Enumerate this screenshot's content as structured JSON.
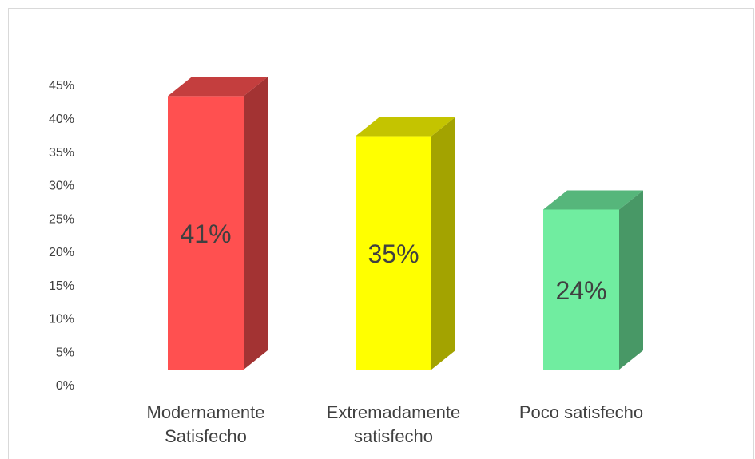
{
  "chart_data": {
    "type": "bar3d",
    "categories": [
      "Modernamente Satisfecho",
      "Extremadamente satisfecho",
      "Poco satisfecho"
    ],
    "values": [
      41,
      35,
      24
    ],
    "value_labels": [
      "41%",
      "35%",
      "24%"
    ],
    "colors": [
      "#ff5050",
      "#ffff00",
      "#70eda0"
    ],
    "ylim": [
      0,
      45
    ],
    "yticks": [
      {
        "value": 0,
        "label": "0%"
      },
      {
        "value": 5,
        "label": "5%"
      },
      {
        "value": 10,
        "label": "10%"
      },
      {
        "value": 15,
        "label": "15%"
      },
      {
        "value": 20,
        "label": "20%"
      },
      {
        "value": 25,
        "label": "25%"
      },
      {
        "value": 30,
        "label": "30%"
      },
      {
        "value": 35,
        "label": "35%"
      },
      {
        "value": 40,
        "label": "40%"
      },
      {
        "value": 45,
        "label": "45%"
      }
    ],
    "grid": false
  }
}
